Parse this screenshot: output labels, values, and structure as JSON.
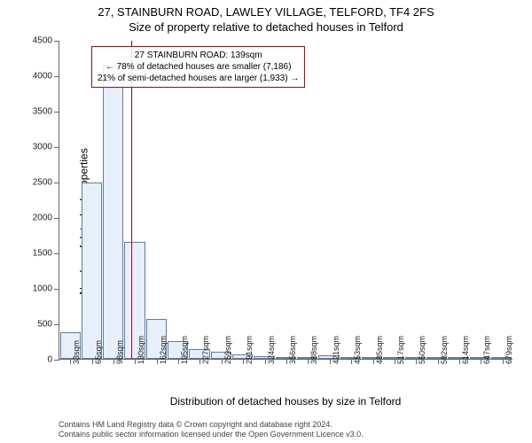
{
  "title": {
    "line1": "27, STAINBURN ROAD, LAWLEY VILLAGE, TELFORD, TF4 2FS",
    "line2": "Size of property relative to detached houses in Telford"
  },
  "yaxis": {
    "label": "Number of detached properties",
    "ticks": [
      0,
      500,
      1000,
      1500,
      2000,
      2500,
      3000,
      3500,
      4000,
      4500
    ],
    "max": 4500
  },
  "xaxis": {
    "label": "Distribution of detached houses by size in Telford",
    "labels": [
      "33sqm",
      "65sqm",
      "98sqm",
      "130sqm",
      "162sqm",
      "195sqm",
      "227sqm",
      "259sqm",
      "291sqm",
      "324sqm",
      "356sqm",
      "388sqm",
      "421sqm",
      "453sqm",
      "485sqm",
      "517sqm",
      "550sqm",
      "582sqm",
      "614sqm",
      "647sqm",
      "679sqm"
    ]
  },
  "bars": {
    "values": [
      370,
      2500,
      4150,
      1650,
      560,
      250,
      140,
      100,
      60,
      40,
      30,
      20,
      50,
      10,
      10,
      5,
      5,
      5,
      5,
      5,
      5
    ],
    "fill": "#e6effa",
    "stroke": "#5b7fb0"
  },
  "marker": {
    "bar_index": 3,
    "color": "#cc0000"
  },
  "callout": {
    "border": "#cc0000",
    "line1": "27 STAINBURN ROAD: 139sqm",
    "line2": "← 78% of detached houses are smaller (7,186)",
    "line3": "21% of semi-detached houses are larger (1,933) →"
  },
  "footer": {
    "line1": "Contains HM Land Registry data © Crown copyright and database right 2024.",
    "line2": "Contains public sector information licensed under the Open Government Licence v3.0."
  },
  "colors": {
    "axis": "#666666",
    "text": "#000000"
  }
}
